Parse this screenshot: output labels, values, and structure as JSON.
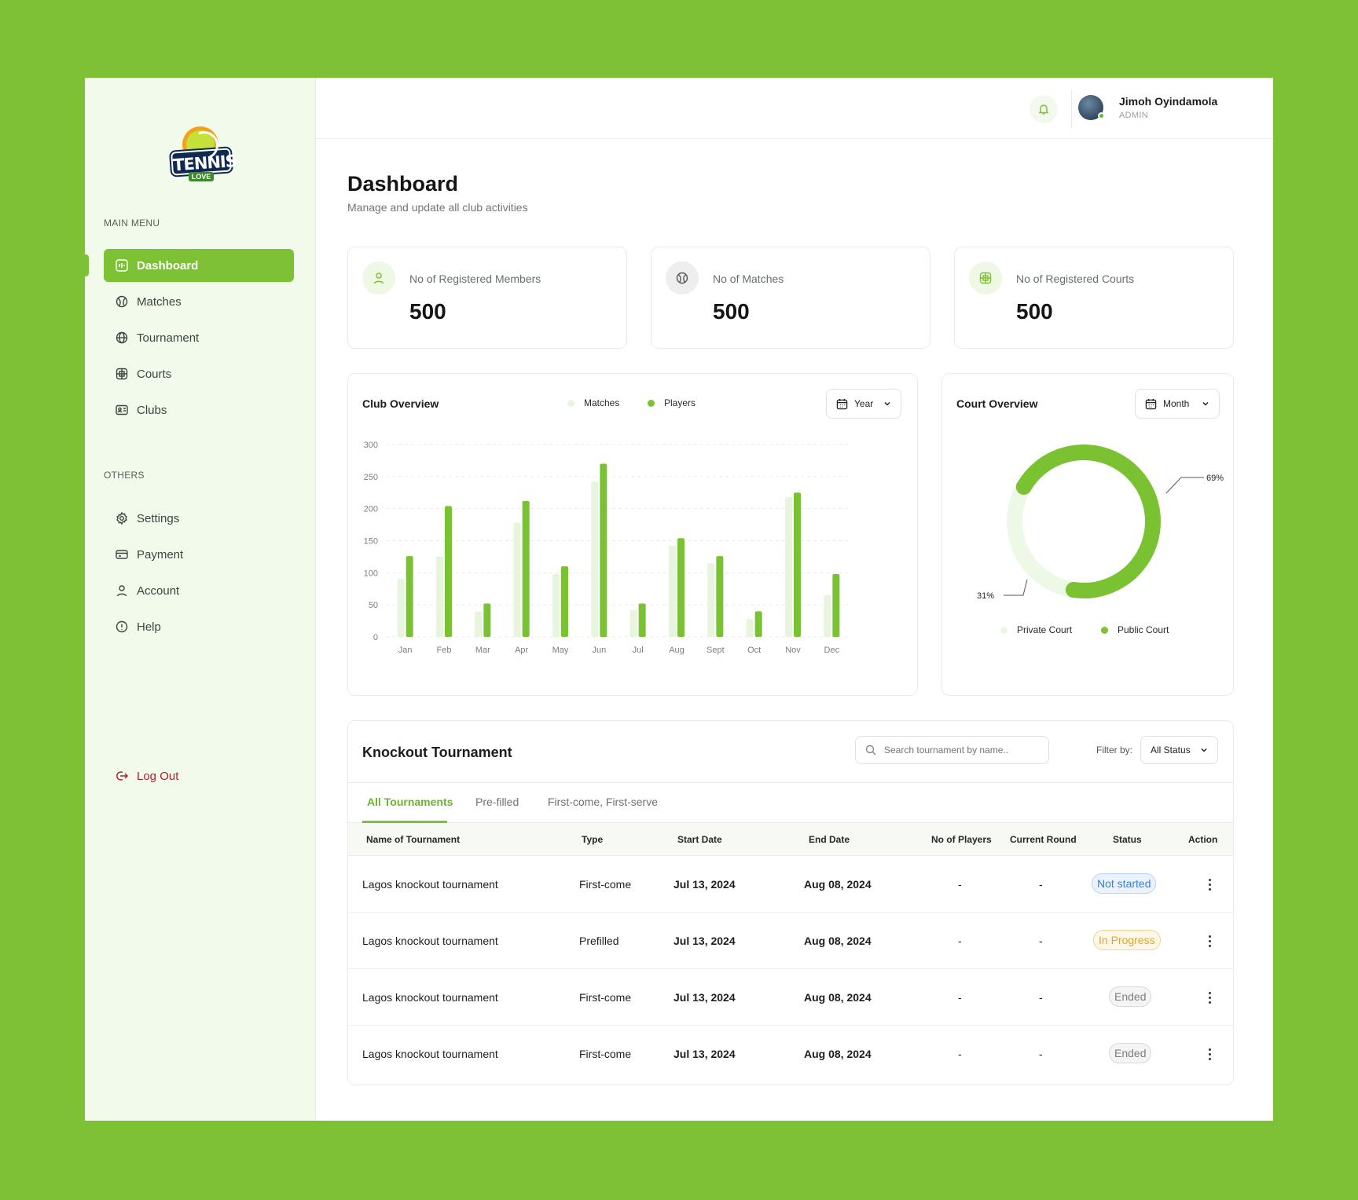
{
  "brand": {
    "logo_text": "TENNIS",
    "logo_sub": "LOVE"
  },
  "sidebar": {
    "main_menu_label": "MAIN MENU",
    "main_items": [
      {
        "label": "Dashboard",
        "icon": "dashboard-icon",
        "active": true
      },
      {
        "label": "Matches",
        "icon": "tennis-ball-icon"
      },
      {
        "label": "Tournament",
        "icon": "globe-icon"
      },
      {
        "label": "Courts",
        "icon": "court-icon"
      },
      {
        "label": "Clubs",
        "icon": "id-card-icon"
      }
    ],
    "others_label": "OTHERS",
    "other_items": [
      {
        "label": "Settings",
        "icon": "gear-icon"
      },
      {
        "label": "Payment",
        "icon": "card-icon"
      },
      {
        "label": "Account",
        "icon": "user-icon"
      },
      {
        "label": "Help",
        "icon": "info-icon"
      }
    ],
    "logout_label": "Log Out"
  },
  "header": {
    "user_name": "Jimoh Oyindamola",
    "user_role": "ADMIN"
  },
  "page": {
    "title": "Dashboard",
    "subtitle": "Manage and update all club activities"
  },
  "stats": [
    {
      "label": "No of Registered Members",
      "value": "500",
      "icon": "user-icon"
    },
    {
      "label": "No of Matches",
      "value": "500",
      "icon": "tennis-ball-icon"
    },
    {
      "label": "No of Registered Courts",
      "value": "500",
      "icon": "court-icon"
    }
  ],
  "club_overview": {
    "title": "Club Overview",
    "legend_matches": "Matches",
    "legend_players": "Players",
    "period": "Year",
    "colors": {
      "matches": "#e7f5dc",
      "players": "#79c232"
    }
  },
  "court_overview": {
    "title": "Court Overview",
    "period": "Month",
    "public_pct_label": "69%",
    "private_pct_label": "31%",
    "legend_private": "Private Court",
    "legend_public": "Public Court"
  },
  "chart_data": [
    {
      "type": "bar",
      "title": "Club Overview",
      "categories": [
        "Jan",
        "Feb",
        "Mar",
        "Apr",
        "May",
        "Jun",
        "Jul",
        "Aug",
        "Sept",
        "Oct",
        "Nov",
        "Dec"
      ],
      "yticks": [
        0,
        50,
        100,
        150,
        200,
        250,
        300
      ],
      "ylim": [
        0,
        300
      ],
      "grid": true,
      "legend": "top",
      "series": [
        {
          "name": "Matches",
          "values": [
            90,
            125,
            40,
            178,
            98,
            242,
            42,
            142,
            115,
            28,
            218,
            65
          ]
        },
        {
          "name": "Players",
          "values": [
            126,
            204,
            52,
            212,
            110,
            270,
            52,
            154,
            126,
            40,
            225,
            98
          ]
        }
      ]
    },
    {
      "type": "pie",
      "title": "Court Overview",
      "categories": [
        "Private Court",
        "Public Court"
      ],
      "values": [
        31,
        69
      ],
      "legend": "bottom"
    }
  ],
  "tournament": {
    "title": "Knockout Tournament",
    "search_placeholder": "Search tournament by name..",
    "filter_label": "Filter by:",
    "filter_value": "All Status",
    "tabs": [
      "All Tournaments",
      "Pre-filled",
      "First-come, First-serve"
    ],
    "columns": [
      "Name of Tournament",
      "Type",
      "Start Date",
      "End Date",
      "No of Players",
      "Current Round",
      "Status",
      "Action"
    ],
    "rows": [
      {
        "name": "Lagos knockout tournament",
        "type": "First-come",
        "start": "Jul 13, 2024",
        "end": "Aug 08, 2024",
        "players": "-",
        "round": "-",
        "status": "Not started",
        "status_kind": "not"
      },
      {
        "name": "Lagos knockout tournament",
        "type": "Prefilled",
        "start": "Jul 13, 2024",
        "end": "Aug 08, 2024",
        "players": "-",
        "round": "-",
        "status": "In Progress",
        "status_kind": "prog"
      },
      {
        "name": "Lagos knockout tournament",
        "type": "First-come",
        "start": "Jul 13, 2024",
        "end": "Aug 08, 2024",
        "players": "-",
        "round": "-",
        "status": "Ended",
        "status_kind": "end"
      },
      {
        "name": "Lagos knockout tournament",
        "type": "First-come",
        "start": "Jul 13, 2024",
        "end": "Aug 08, 2024",
        "players": "-",
        "round": "-",
        "status": "Ended",
        "status_kind": "end"
      }
    ]
  }
}
